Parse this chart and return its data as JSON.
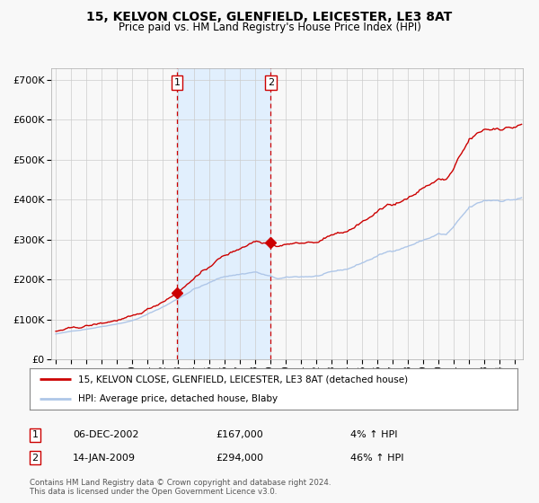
{
  "title": "15, KELVON CLOSE, GLENFIELD, LEICESTER, LE3 8AT",
  "subtitle": "Price paid vs. HM Land Registry's House Price Index (HPI)",
  "legend_line1": "15, KELVON CLOSE, GLENFIELD, LEICESTER, LE3 8AT (detached house)",
  "legend_line2": "HPI: Average price, detached house, Blaby",
  "sale1_date": "06-DEC-2002",
  "sale1_price": 167000,
  "sale1_label": "4% ↑ HPI",
  "sale2_date": "14-JAN-2009",
  "sale2_price": 294000,
  "sale2_label": "46% ↑ HPI",
  "footer1": "Contains HM Land Registry data © Crown copyright and database right 2024.",
  "footer2": "This data is licensed under the Open Government Licence v3.0.",
  "sale1_year": 2002.92,
  "sale2_year": 2009.04,
  "hpi_color": "#aec6e8",
  "price_color": "#cc0000",
  "marker_color": "#cc0000",
  "background_color": "#f8f8f8",
  "grid_color": "#cccccc",
  "shading_color": "#ddeeff",
  "dashed_line_color": "#cc0000",
  "ylim": [
    0,
    730000
  ],
  "yticks": [
    0,
    100000,
    200000,
    300000,
    400000,
    500000,
    600000,
    700000
  ],
  "xlim_start": 1994.7,
  "xlim_end": 2025.5
}
